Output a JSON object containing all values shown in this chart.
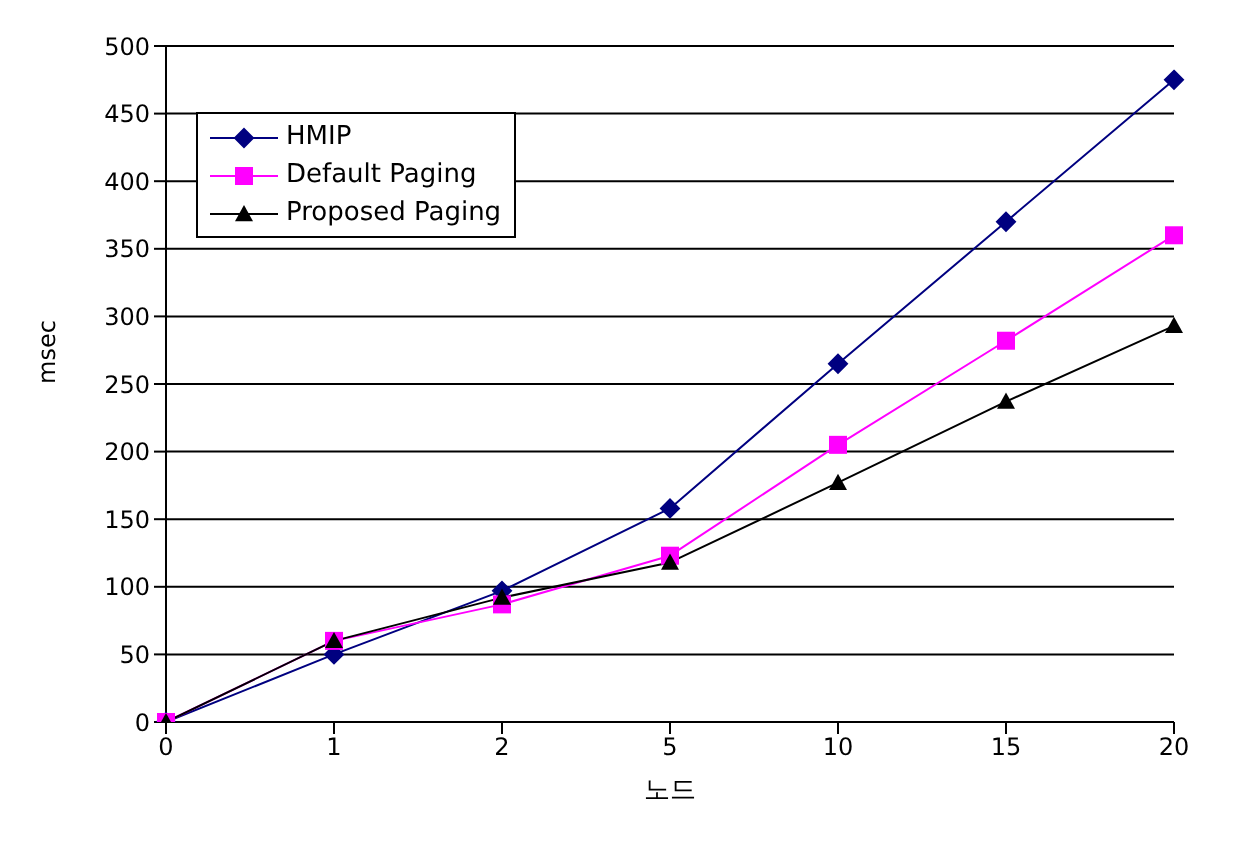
{
  "chart_data": {
    "type": "line",
    "xlabel": "노드",
    "ylabel": "msec",
    "categories": [
      "0",
      "1",
      "2",
      "5",
      "10",
      "15",
      "20"
    ],
    "series": [
      {
        "name": "HMIP",
        "color": "#000080",
        "marker": "diamond",
        "values": [
          0,
          50,
          97,
          158,
          265,
          370,
          475
        ]
      },
      {
        "name": "Default Paging",
        "color": "#ff00ff",
        "marker": "square",
        "values": [
          0,
          60,
          87,
          123,
          205,
          282,
          360
        ]
      },
      {
        "name": "Proposed Paging",
        "color": "#000000",
        "marker": "triangle",
        "values": [
          0,
          60,
          92,
          118,
          177,
          237,
          293
        ]
      }
    ],
    "ylim": [
      0,
      500
    ],
    "yticks": [
      0,
      50,
      100,
      150,
      200,
      250,
      300,
      350,
      400,
      450,
      500
    ],
    "grid": "y",
    "legend": "top left"
  }
}
